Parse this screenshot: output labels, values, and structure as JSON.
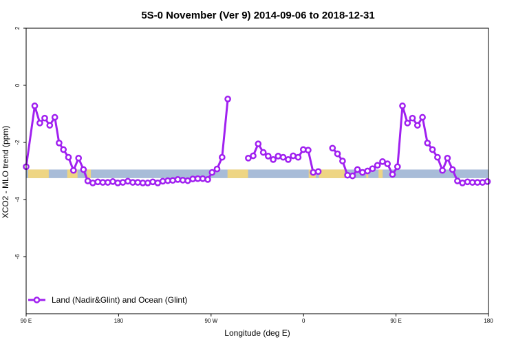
{
  "chart_data": {
    "type": "line",
    "title": "5S-0 November (Ver 9)   2014-09-06 to 2018-12-31",
    "xlabel": "Longitude (deg E)",
    "ylabel": "XCO2 - MLO trend (ppm)",
    "xlim": [
      90,
      540
    ],
    "ylim": [
      -8,
      2
    ],
    "x_ticks": [
      {
        "value": 90,
        "label": "90 E"
      },
      {
        "value": 180,
        "label": "180"
      },
      {
        "value": 270,
        "label": "90 W"
      },
      {
        "value": 360,
        "label": "0"
      },
      {
        "value": 450,
        "label": "90 E"
      },
      {
        "value": 540,
        "label": "180"
      }
    ],
    "y_ticks": [
      {
        "value": 2,
        "label": "2"
      },
      {
        "value": 0,
        "label": "0"
      },
      {
        "value": -2,
        "label": "-2"
      },
      {
        "value": -4,
        "label": "-4"
      },
      {
        "value": -6,
        "label": "-6"
      }
    ],
    "legend": {
      "position": "bottom-left",
      "label": "Land (Nadir&Glint) and Ocean (Glint)"
    },
    "line_color": "#a020f0",
    "band": {
      "ymin": -3.25,
      "ymax": -2.95,
      "ocean_color": "#a8bcd8",
      "land_color": "#f5d77a"
    },
    "series": [
      {
        "name": "Land (Nadir&Glint) and Ocean (Glint)",
        "points": [
          [
            90.0,
            -2.85
          ],
          [
            98.4,
            -0.72
          ],
          [
            103.3,
            -1.32
          ],
          [
            108.1,
            -1.15
          ],
          [
            113.0,
            -1.4
          ],
          [
            117.9,
            -1.12
          ],
          [
            122.1,
            -2.02
          ],
          [
            126.3,
            -2.25
          ],
          [
            131.2,
            -2.52
          ],
          [
            136.1,
            -2.98
          ],
          [
            141.0,
            -2.55
          ],
          [
            145.8,
            -2.95
          ],
          [
            150.0,
            -3.35
          ],
          [
            154.9,
            -3.42
          ],
          [
            159.8,
            -3.38
          ],
          [
            164.6,
            -3.4
          ],
          [
            169.5,
            -3.4
          ],
          [
            174.4,
            -3.37
          ],
          [
            179.2,
            -3.42
          ],
          [
            184.1,
            -3.4
          ],
          [
            189.0,
            -3.36
          ],
          [
            193.8,
            -3.4
          ],
          [
            198.7,
            -3.4
          ],
          [
            203.6,
            -3.42
          ],
          [
            208.4,
            -3.42
          ],
          [
            213.3,
            -3.38
          ],
          [
            218.1,
            -3.42
          ],
          [
            223.0,
            -3.36
          ],
          [
            227.9,
            -3.34
          ],
          [
            232.7,
            -3.33
          ],
          [
            237.6,
            -3.3
          ],
          [
            242.5,
            -3.32
          ],
          [
            247.3,
            -3.34
          ],
          [
            252.2,
            -3.28
          ],
          [
            257.1,
            -3.27
          ],
          [
            261.9,
            -3.27
          ],
          [
            266.8,
            -3.3
          ],
          [
            271.0,
            -3.05
          ],
          [
            275.8,
            -2.93
          ],
          [
            280.7,
            -2.52
          ],
          [
            286.3,
            -0.48
          ],
          [
            306.2,
            -2.55
          ],
          [
            311.0,
            -2.47
          ],
          [
            315.9,
            -2.05
          ],
          [
            320.8,
            -2.35
          ],
          [
            325.6,
            -2.48
          ],
          [
            330.5,
            -2.6
          ],
          [
            335.3,
            -2.48
          ],
          [
            340.2,
            -2.52
          ],
          [
            345.1,
            -2.6
          ],
          [
            349.9,
            -2.47
          ],
          [
            354.8,
            -2.52
          ],
          [
            359.7,
            -2.25
          ],
          [
            364.5,
            -2.27
          ],
          [
            369.4,
            -3.05
          ],
          [
            374.3,
            -3.02
          ],
          [
            388.2,
            -2.2
          ],
          [
            393.1,
            -2.4
          ],
          [
            398.0,
            -2.65
          ],
          [
            402.8,
            -3.15
          ],
          [
            407.7,
            -3.17
          ],
          [
            412.5,
            -2.95
          ],
          [
            417.4,
            -3.05
          ],
          [
            422.3,
            -3.0
          ],
          [
            427.1,
            -2.92
          ],
          [
            432.0,
            -2.8
          ],
          [
            436.9,
            -2.67
          ],
          [
            441.7,
            -2.75
          ],
          [
            446.6,
            -3.12
          ],
          [
            451.5,
            -2.85
          ],
          [
            456.3,
            -0.72
          ],
          [
            461.2,
            -1.32
          ],
          [
            466.0,
            -1.15
          ],
          [
            470.9,
            -1.4
          ],
          [
            475.8,
            -1.12
          ],
          [
            480.6,
            -2.02
          ],
          [
            485.5,
            -2.25
          ],
          [
            490.4,
            -2.52
          ],
          [
            495.2,
            -2.98
          ],
          [
            500.1,
            -2.55
          ],
          [
            505.0,
            -2.95
          ],
          [
            509.8,
            -3.35
          ],
          [
            514.7,
            -3.42
          ],
          [
            519.6,
            -3.38
          ],
          [
            524.4,
            -3.4
          ],
          [
            529.3,
            -3.4
          ],
          [
            534.2,
            -3.4
          ],
          [
            539.0,
            -3.37
          ]
        ],
        "breaks_after": [
          286.3,
          374.3
        ]
      }
    ]
  }
}
